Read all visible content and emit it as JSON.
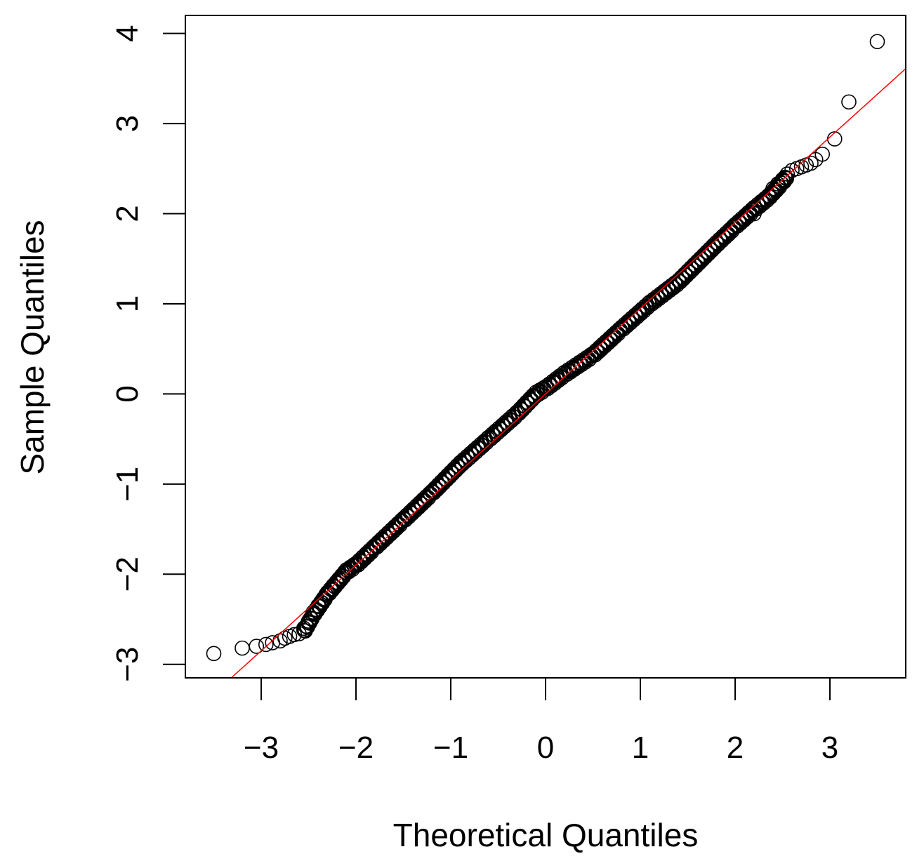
{
  "chart_data": {
    "type": "scatter",
    "title": "",
    "xlabel": "Theoretical Quantiles",
    "ylabel": "Sample Quantiles",
    "xlim": [
      -3.8,
      3.8
    ],
    "ylim": [
      -3.15,
      4.2
    ],
    "x_ticks": [
      -3,
      -2,
      -1,
      0,
      1,
      2,
      3
    ],
    "y_ticks": [
      -3,
      -2,
      -1,
      0,
      1,
      2,
      3,
      4
    ],
    "x_tick_labels": [
      "−3",
      "−2",
      "−1",
      "0",
      "1",
      "2",
      "3"
    ],
    "y_tick_labels": [
      "−3",
      "−2",
      "−1",
      "0",
      "1",
      "2",
      "3",
      "4"
    ],
    "grid": false,
    "legend": "none",
    "point_color": "#000000",
    "line_color": "#ff0000",
    "reference_line": {
      "intercept": 0.0,
      "slope": 0.95
    },
    "body_segments": [
      [
        -2.55,
        -2.64
      ],
      [
        -2.45,
        -2.45
      ],
      [
        -2.3,
        -2.22
      ],
      [
        -2.1,
        -1.97
      ],
      [
        -2.0,
        -1.9
      ],
      [
        -1.8,
        -1.7
      ],
      [
        -1.5,
        -1.4
      ],
      [
        -1.2,
        -1.1
      ],
      [
        -0.9,
        -0.78
      ],
      [
        -0.6,
        -0.5
      ],
      [
        -0.3,
        -0.22
      ],
      [
        -0.1,
        0.0
      ],
      [
        0.0,
        0.06
      ],
      [
        0.2,
        0.22
      ],
      [
        0.5,
        0.43
      ],
      [
        0.8,
        0.72
      ],
      [
        1.1,
        1.0
      ],
      [
        1.4,
        1.24
      ],
      [
        1.6,
        1.45
      ],
      [
        1.8,
        1.66
      ],
      [
        2.0,
        1.86
      ],
      [
        2.2,
        2.05
      ],
      [
        2.35,
        2.18
      ],
      [
        2.5,
        2.35
      ],
      [
        2.55,
        2.42
      ]
    ],
    "tail_points": [
      [
        -3.5,
        -2.88
      ],
      [
        -3.2,
        -2.82
      ],
      [
        -3.05,
        -2.8
      ],
      [
        -2.95,
        -2.78
      ],
      [
        -2.88,
        -2.76
      ],
      [
        -2.8,
        -2.74
      ],
      [
        -2.75,
        -2.71
      ],
      [
        -2.7,
        -2.69
      ],
      [
        -2.65,
        -2.67
      ],
      [
        -2.6,
        -2.66
      ],
      [
        -2.55,
        -2.6
      ],
      [
        -2.5,
        -2.52
      ],
      [
        -2.45,
        -2.42
      ],
      [
        -2.4,
        -2.35
      ],
      [
        -2.35,
        -2.28
      ],
      [
        -2.3,
        -2.22
      ],
      [
        -2.25,
        -2.16
      ],
      [
        -2.2,
        -2.1
      ],
      [
        -2.15,
        -2.05
      ],
      [
        -2.1,
        -1.98
      ],
      [
        -2.05,
        -1.93
      ],
      [
        -2.0,
        -1.9
      ],
      [
        2.2,
        2.0
      ],
      [
        2.3,
        2.15
      ],
      [
        2.35,
        2.2
      ],
      [
        2.4,
        2.28
      ],
      [
        2.45,
        2.33
      ],
      [
        2.5,
        2.38
      ],
      [
        2.55,
        2.44
      ],
      [
        2.6,
        2.48
      ],
      [
        2.65,
        2.5
      ],
      [
        2.7,
        2.52
      ],
      [
        2.75,
        2.54
      ],
      [
        2.8,
        2.56
      ],
      [
        2.85,
        2.6
      ],
      [
        2.92,
        2.66
      ],
      [
        3.05,
        2.83
      ],
      [
        3.2,
        3.24
      ],
      [
        3.5,
        3.91
      ]
    ]
  }
}
